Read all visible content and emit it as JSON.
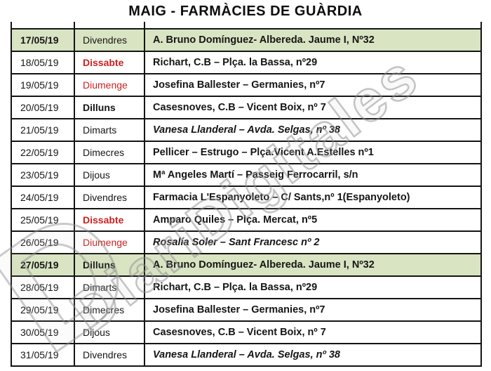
{
  "title": "MAIG - FARMÀCIES DE GUÀRDIA",
  "watermark": {
    "text": "DiariDigitales",
    "letter": "D"
  },
  "colors": {
    "highlight_green": "#d9e4c2",
    "weekend_red": "#cc2020",
    "border_black": "#141414",
    "watermark_gray": "#8c8c8c"
  },
  "table": {
    "columns": [
      "date",
      "day",
      "pharmacy"
    ],
    "rows": [
      {
        "date": "17/05/19",
        "day": "Divendres",
        "pharmacy": "A. Bruno Domínguez- Albereda. Jaume I, Nº32",
        "highlight": true,
        "date_bold": true,
        "day_bold": false,
        "day_red": false,
        "pharmacy_italic": false
      },
      {
        "date": "18/05/19",
        "day": "Dissabte",
        "pharmacy": "Richart, C.B – Plça. la Bassa, nº29",
        "highlight": false,
        "date_bold": false,
        "day_bold": true,
        "day_red": true,
        "pharmacy_italic": false
      },
      {
        "date": "19/05/19",
        "day": "Diumenge",
        "pharmacy": "Josefina Ballester – Germanies, nº7",
        "highlight": false,
        "date_bold": false,
        "day_bold": false,
        "day_red": true,
        "pharmacy_italic": false
      },
      {
        "date": "20/05/19",
        "day": "Dilluns",
        "pharmacy": "Casesnoves, C.B – Vicent Boix, nº 7",
        "highlight": false,
        "date_bold": false,
        "day_bold": true,
        "day_red": false,
        "pharmacy_italic": false
      },
      {
        "date": "21/05/19",
        "day": "Dimarts",
        "pharmacy": "Vanesa Llanderal – Avda. Selgas, nº 38",
        "highlight": false,
        "date_bold": false,
        "day_bold": false,
        "day_red": false,
        "pharmacy_italic": true
      },
      {
        "date": "22/05/19",
        "day": "Dimecres",
        "pharmacy": "Pellicer – Estrugo – Plça.Vicent A.Estelles nº1",
        "highlight": false,
        "date_bold": false,
        "day_bold": false,
        "day_red": false,
        "pharmacy_italic": false
      },
      {
        "date": "23/05/19",
        "day": "Dijous",
        "pharmacy": "Mª Angeles Martí – Passeig Ferrocarril, s/n",
        "highlight": false,
        "date_bold": false,
        "day_bold": false,
        "day_red": false,
        "pharmacy_italic": false
      },
      {
        "date": "24/05/19",
        "day": "Divendres",
        "pharmacy": "Farmacia L'Espanyoleto – C/ Sants,nº 1(Espanyoleto)",
        "highlight": false,
        "date_bold": false,
        "day_bold": false,
        "day_red": false,
        "pharmacy_italic": false
      },
      {
        "date": "25/05/19",
        "day": "Dissabte",
        "pharmacy": "Amparo Quiles – Plça. Mercat, nº5",
        "highlight": false,
        "date_bold": false,
        "day_bold": true,
        "day_red": true,
        "pharmacy_italic": false
      },
      {
        "date": "26/05/19",
        "day": "Diumenge",
        "pharmacy": "Rosalía Soler – Sant Francesc nº 2",
        "highlight": false,
        "date_bold": false,
        "day_bold": false,
        "day_red": true,
        "pharmacy_italic": true
      },
      {
        "date": "27/05/19",
        "day": "Dilluns",
        "pharmacy": "A. Bruno Domínguez- Albereda. Jaume I, Nº32",
        "highlight": true,
        "date_bold": true,
        "day_bold": true,
        "day_red": false,
        "pharmacy_italic": false
      },
      {
        "date": "28/05/19",
        "day": "Dimarts",
        "pharmacy": "Richart, C.B – Plça. la Bassa, nº29",
        "highlight": false,
        "date_bold": false,
        "day_bold": false,
        "day_red": false,
        "pharmacy_italic": false
      },
      {
        "date": "29/05/19",
        "day": "Dimecres",
        "pharmacy": "Josefina Ballester – Germanies, nº7",
        "highlight": false,
        "date_bold": false,
        "day_bold": false,
        "day_red": false,
        "pharmacy_italic": false
      },
      {
        "date": "30/05/19",
        "day": "Dijous",
        "pharmacy": "Casesnoves, C.B – Vicent Boix, nº 7",
        "highlight": false,
        "date_bold": false,
        "day_bold": false,
        "day_red": false,
        "pharmacy_italic": false
      },
      {
        "date": "31/05/19",
        "day": "Divendres",
        "pharmacy": "Vanesa Llanderal – Avda. Selgas, nº 38",
        "highlight": false,
        "date_bold": false,
        "day_bold": false,
        "day_red": false,
        "pharmacy_italic": true
      }
    ]
  }
}
